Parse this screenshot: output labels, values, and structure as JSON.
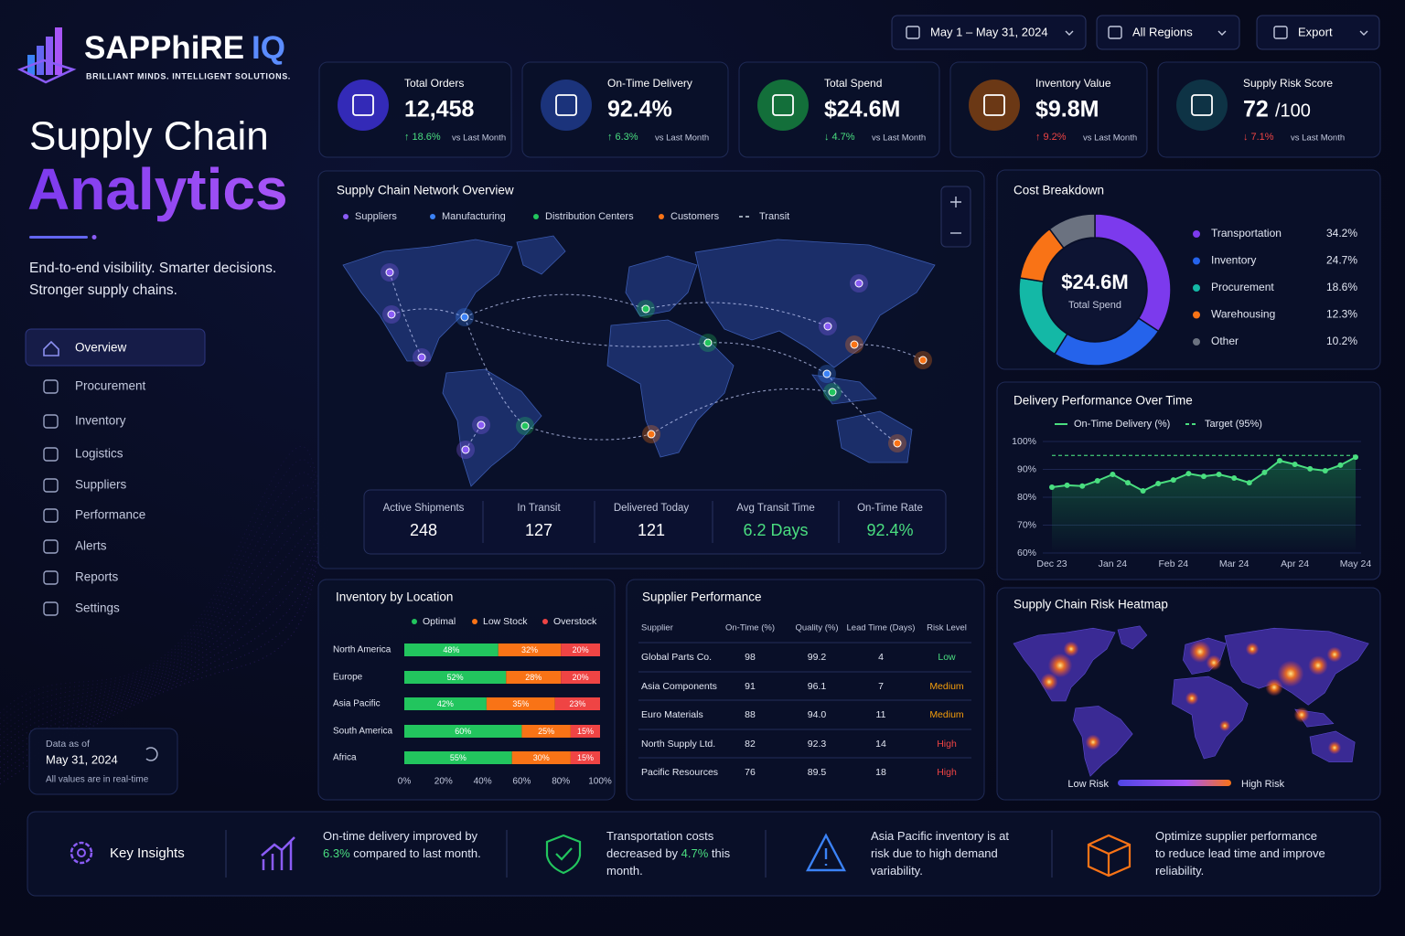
{
  "brand": {
    "name": "SAPPhiRE",
    "name_accent": "IQ",
    "tagline": "BRILLIANT MINDS. INTELLIGENT SOLUTIONS."
  },
  "hero": {
    "title": "Supply Chain",
    "title_accent": "Analytics",
    "subtitle": [
      "End-to-end visibility. Smarter decisions.",
      "Stronger supply chains."
    ]
  },
  "nav": [
    "Overview",
    "Procurement",
    "Inventory",
    "Logistics",
    "Suppliers",
    "Performance",
    "Alerts",
    "Reports",
    "Settings"
  ],
  "status": {
    "label": "Data as of",
    "date": "May 31, 2024",
    "note": "All values are in real-time"
  },
  "controls": {
    "date_range": "May 1 – May 31, 2024",
    "region": "All Regions",
    "export": "Export"
  },
  "kpis": [
    {
      "label": "Total Orders",
      "value": "12,458",
      "arrow": "↑",
      "change": "18.6%",
      "compare": "vs Last Month",
      "trend_color": "#4ade80",
      "icon_color": "#3b2fd0"
    },
    {
      "label": "On-Time Delivery",
      "value": "92.4%",
      "arrow": "↑",
      "change": "6.3%",
      "compare": "vs Last Month",
      "trend_color": "#4ade80",
      "icon_color": "#1e3a8a"
    },
    {
      "label": "Total Spend",
      "value": "$24.6M",
      "arrow": "↓",
      "change": "4.7%",
      "compare": "vs Last Month",
      "trend_color": "#4ade80",
      "icon_color": "#15803d"
    },
    {
      "label": "Inventory Value",
      "value": "$9.8M",
      "arrow": "↑",
      "change": "9.2%",
      "compare": "vs Last Month",
      "trend_color": "#ef4444",
      "icon_color": "#7c3f12"
    },
    {
      "label": "Supply Risk Score",
      "value": "72",
      "unit": "/100",
      "arrow": "↓",
      "change": "7.1%",
      "compare": "vs Last Month",
      "trend_color": "#ef4444",
      "icon_color": "#0f3a4a"
    }
  ],
  "network": {
    "title": "Supply Chain Network Overview",
    "legend": [
      {
        "name": "Suppliers",
        "color": "#8b5cf6"
      },
      {
        "name": "Manufacturing",
        "color": "#3b82f6"
      },
      {
        "name": "Distribution Centers",
        "color": "#22c55e"
      },
      {
        "name": "Customers",
        "color": "#f97316"
      },
      {
        "name": "Transit",
        "color": "#cbd5e1"
      }
    ],
    "stats": [
      {
        "label": "Active Shipments",
        "value": "248",
        "color": "#ffffff"
      },
      {
        "label": "In Transit",
        "value": "127",
        "color": "#ffffff"
      },
      {
        "label": "Delivered Today",
        "value": "121",
        "color": "#ffffff"
      },
      {
        "label": "Avg Transit Time",
        "value": "6.2 Days",
        "color": "#4ade80"
      },
      {
        "label": "On-Time Rate",
        "value": "92.4%",
        "color": "#4ade80"
      }
    ]
  },
  "chart_data": [
    {
      "type": "pie",
      "title": "Cost Breakdown",
      "center_value": "$24.6M",
      "center_label": "Total Spend",
      "categories": [
        "Transportation",
        "Inventory",
        "Procurement",
        "Warehousing",
        "Other"
      ],
      "values": [
        34.2,
        24.7,
        18.6,
        12.3,
        10.2
      ],
      "value_labels": [
        "34.2%",
        "24.7%",
        "18.6%",
        "12.3%",
        "10.2%"
      ],
      "colors": [
        "#7c3aed",
        "#2563eb",
        "#14b8a6",
        "#f97316",
        "#6b7280"
      ]
    },
    {
      "type": "line",
      "title": "Delivery Performance Over Time",
      "categories": [
        "Dec 23",
        null,
        null,
        null,
        "Jan 24",
        null,
        null,
        null,
        "Feb 24",
        null,
        null,
        null,
        "Mar 24",
        null,
        null,
        null,
        "Apr 24",
        null,
        null,
        null,
        "May 24"
      ],
      "series": [
        {
          "name": "On-Time Delivery (%)",
          "color": "#4ade80",
          "values": [
            83.6,
            84.3,
            84.0,
            85.9,
            88.2,
            85.2,
            82.3,
            84.9,
            86.2,
            88.5,
            87.5,
            88.2,
            86.9,
            85.2,
            88.9,
            93.1,
            91.8,
            90.2,
            89.5,
            91.5,
            94.4
          ]
        },
        {
          "name": "Target (95%)",
          "color": "#4ade80",
          "dashed": true,
          "values": [
            95,
            95,
            95,
            95,
            95,
            95,
            95,
            95,
            95,
            95,
            95,
            95,
            95,
            95,
            95,
            95,
            95,
            95,
            95,
            95,
            95
          ]
        }
      ],
      "ylim": [
        60,
        100
      ],
      "yticks": [
        {
          "value": 60,
          "label": "60%"
        },
        {
          "value": 70,
          "label": "70%"
        },
        {
          "value": 80,
          "label": "80%"
        },
        {
          "value": 90,
          "label": "90%"
        },
        {
          "value": 100,
          "label": "100%"
        }
      ],
      "grid": true
    },
    {
      "type": "bar",
      "orientation": "horizontal",
      "stacked": true,
      "title": "Inventory by Location",
      "categories": [
        "North America",
        "Europe",
        "Asia Pacific",
        "South America",
        "Africa"
      ],
      "series": [
        {
          "name": "Optimal",
          "color": "#22c55e",
          "values": [
            48,
            52,
            42,
            60,
            55
          ],
          "value_labels": [
            "48%",
            "52%",
            "42%",
            "60%",
            "55%"
          ]
        },
        {
          "name": "Low Stock",
          "color": "#f97316",
          "values": [
            32,
            28,
            35,
            25,
            30
          ],
          "value_labels": [
            "32%",
            "28%",
            "35%",
            "25%",
            "30%"
          ]
        },
        {
          "name": "Overstock",
          "color": "#ef4444",
          "values": [
            20,
            20,
            23,
            15,
            15
          ],
          "value_labels": [
            "20%",
            "20%",
            "23%",
            "15%",
            "15%"
          ]
        }
      ],
      "xlim": [
        0,
        100
      ],
      "xticks": [
        {
          "value": 0,
          "label": "0%"
        },
        {
          "value": 20,
          "label": "20%"
        },
        {
          "value": 40,
          "label": "40%"
        },
        {
          "value": 60,
          "label": "60%"
        },
        {
          "value": 80,
          "label": "80%"
        },
        {
          "value": 100,
          "label": "100%"
        }
      ]
    }
  ],
  "suppliers": {
    "title": "Supplier Performance",
    "columns": [
      "Supplier",
      "On-Time (%)",
      "Quality (%)",
      "Lead Time (Days)",
      "Risk Level"
    ],
    "rows": [
      [
        "Global Parts Co.",
        "98",
        "99.2",
        "4",
        "Low"
      ],
      [
        "Asia Components",
        "91",
        "96.1",
        "7",
        "Medium"
      ],
      [
        "Euro Materials",
        "88",
        "94.0",
        "11",
        "Medium"
      ],
      [
        "North Supply Ltd.",
        "82",
        "92.3",
        "14",
        "High"
      ],
      [
        "Pacific Resources",
        "76",
        "89.5",
        "18",
        "High"
      ]
    ],
    "risk_colors": {
      "Low": "#4ade80",
      "Medium": "#f59e0b",
      "High": "#ef4444"
    }
  },
  "heatmap": {
    "title": "Supply Chain Risk Heatmap",
    "legend_low": "Low Risk",
    "legend_high": "High Risk"
  },
  "insights": {
    "title": "Key Insights",
    "items": [
      {
        "text": "On-time delivery improved by ",
        "highlight": "6.3%",
        "after": " compared to last month.",
        "color": "#4ade80"
      },
      {
        "text": "Transportation costs decreased by ",
        "highlight": "4.7%",
        "after": " this month.",
        "color": "#4ade80"
      },
      {
        "text": "Asia Pacific inventory is at risk due to high demand variability."
      },
      {
        "text": "Optimize supplier performance to reduce lead time and improve reliability."
      }
    ]
  }
}
